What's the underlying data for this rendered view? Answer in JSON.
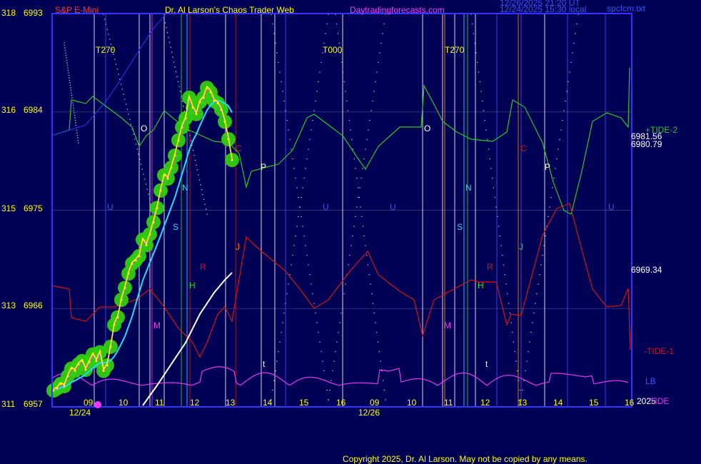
{
  "header": {
    "instrument": "S&P E-Mini",
    "site_title": "Dr. Al Larson's Chaos Trader Web",
    "site_url": "Daytradingforecasts.com",
    "stamp_line1": "12/26/2025 21:20 UT",
    "stamp_line2": "12/24/2025 15:30 local",
    "file_name": "spcfcm.txt"
  },
  "footer": {
    "copyright": "Copyright 2025, Dr. Al Larson. May not be copied by any means."
  },
  "colors": {
    "background": "#000055",
    "frame": "#3333ff",
    "price": "#ffff00",
    "green_tide": "#22cc22",
    "red_tide": "#dd1111",
    "magenta_tide": "#ee33ee",
    "cyan_avg": "#22ddff",
    "white_line": "#ffffff",
    "dot_grid": "#bbbbbb",
    "label_yellow": "#ffff00",
    "label_red": "#ff3333",
    "label_magenta": "#ff33ff"
  },
  "chart_data": {
    "type": "line",
    "y_axis_labels": [
      {
        "left": "318",
        "right": "6993",
        "price": 6993
      },
      {
        "left": "316",
        "right": "6984",
        "price": 6984
      },
      {
        "left": "315",
        "right": "6975",
        "price": 6975
      },
      {
        "left": "313",
        "right": "6966",
        "price": 6966
      },
      {
        "left": "311",
        "right": "6957",
        "price": 6957
      }
    ],
    "y_range": [
      6957,
      6993
    ],
    "x_tick_labels": [
      "09",
      "10",
      "11",
      "12",
      "13",
      "14",
      "15",
      "16",
      "09",
      "10",
      "11",
      "12",
      "13",
      "14",
      "15",
      "16"
    ],
    "date_labels": [
      "12/24",
      "12/26"
    ],
    "cycle_labels": [
      "T270",
      "T000",
      "T270"
    ],
    "right_values": [
      {
        "text": "6981.56",
        "color": "#ffffff"
      },
      {
        "text": "6980.79",
        "color": "#ffffff"
      },
      {
        "text": "6969.34",
        "color": "#ffffff"
      }
    ],
    "legend": [
      {
        "text": "+TIDE-2",
        "color": "#22cc22"
      },
      {
        "text": "-TIDE-1",
        "color": "#dd1111"
      },
      {
        "text": "LB",
        "color": "#3355ff"
      },
      {
        "text": "2025",
        "color": "#ffffff"
      },
      {
        "text": "TIDE",
        "color": "#ee33ee"
      }
    ],
    "vline_letters": [
      "O",
      "P",
      "N",
      "S",
      "H",
      "J",
      "R",
      "M",
      "U",
      "C",
      "t",
      "O",
      "P",
      "N",
      "S",
      "H",
      "J",
      "R",
      "M",
      "U",
      "C",
      "t",
      "U",
      "U"
    ],
    "series": [
      {
        "name": "S&P E-Mini",
        "color": "#ffff00",
        "x": [
          0,
          5,
          10,
          15,
          20,
          25,
          30,
          35,
          40,
          45,
          50,
          55,
          60,
          65,
          70,
          75,
          80,
          85,
          90,
          95,
          100,
          105,
          110,
          115,
          120,
          125,
          130,
          135,
          140,
          145,
          150,
          155,
          160,
          165,
          170,
          175,
          180,
          185,
          190,
          195,
          200,
          205,
          210,
          215,
          220,
          225,
          230,
          235,
          240,
          245,
          250
        ],
        "y": [
          6958.5,
          6958.7,
          6959.1,
          6958.9,
          6959.8,
          6960.5,
          6960.3,
          6960.9,
          6961.2,
          6960.4,
          6961.1,
          6961.8,
          6961.2,
          6962.0,
          6960.3,
          6960.8,
          6962.5,
          6964.5,
          6965.2,
          6966.8,
          6967.9,
          6969.2,
          6970.1,
          6970.4,
          6970.8,
          6972.3,
          6971.8,
          6972.8,
          6973.9,
          6975.2,
          6976.8,
          6978.2,
          6977.9,
          6978.9,
          6980.0,
          6981.4,
          6982.6,
          6983.4,
          6985.3,
          6984.4,
          6983.8,
          6984.9,
          6985.3,
          6986.2,
          6985.8,
          6985.0,
          6984.8,
          6984.2,
          6983.1,
          6981.5,
          6979.6
        ]
      }
    ],
    "tide_curves": [
      "+TIDE-2 (green)",
      "-TIDE-1 (red)",
      "TIDE (magenta)"
    ]
  }
}
